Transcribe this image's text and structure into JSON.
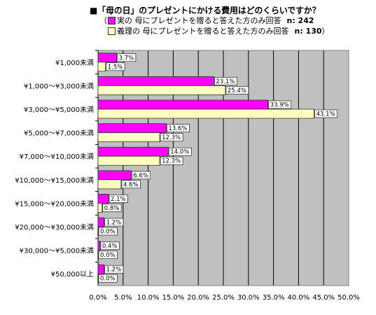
{
  "title": "■「母の日」のプレゼントにかける費用はどのくらいですか？",
  "legend": {
    "open_paren": "（",
    "close_paren": "）",
    "items": [
      {
        "label": "実の 母にプレゼントを贈ると答えた方のみ回答",
        "n": "n: 242",
        "color": "#ff00ff"
      },
      {
        "label": "義理の 母にプレゼントを贈ると答えた方のみ回答",
        "n": "n: 130",
        "color": "#ffffc0"
      }
    ]
  },
  "chart_data": {
    "type": "bar",
    "orientation": "horizontal",
    "categories": [
      "¥1,000未満",
      "¥1,000～¥3,000未満",
      "¥3,000～¥5,000未満",
      "¥5,000～¥7,000未満",
      "¥7,000～¥10,000未満",
      "¥10,000～¥15,000未満",
      "¥15,000～¥20,000未満",
      "¥20,000～¥30,000未満",
      "¥30,000～¥5,000未満",
      "¥50,000以上"
    ],
    "series": [
      {
        "name": "実の 母にプレゼントを贈ると答えた方のみ回答",
        "color": "#ff00ff",
        "values": [
          3.7,
          23.1,
          33.9,
          13.6,
          14.0,
          6.6,
          2.1,
          1.2,
          0.4,
          1.2
        ],
        "labels": [
          "3.7%",
          "23.1%",
          "33.9%",
          "13.6%",
          "14.0%",
          "6.6%",
          "2.1%",
          "1.2%",
          "0.4%",
          "1.2%"
        ]
      },
      {
        "name": "義理の 母にプレゼントを贈ると答えた方のみ回答",
        "color": "#ffffc0",
        "values": [
          1.5,
          25.4,
          43.1,
          12.3,
          12.3,
          4.6,
          0.8,
          0.0,
          0.0,
          0.0
        ],
        "labels": [
          "1.5%",
          "25.4%",
          "43.1%",
          "12.3%",
          "12.3%",
          "4.6%",
          "0.8%",
          "0.0%",
          "0.0%",
          "0.0%"
        ]
      }
    ],
    "xlim": [
      0,
      50
    ],
    "xticks": [
      "0.0%",
      "5.0%",
      "10.0%",
      "15.0%",
      "20.0%",
      "25.0%",
      "30.0%",
      "35.0%",
      "40.0%",
      "45.0%",
      "50.0%"
    ],
    "plot_background": "#c0c0c0",
    "grid": true
  }
}
